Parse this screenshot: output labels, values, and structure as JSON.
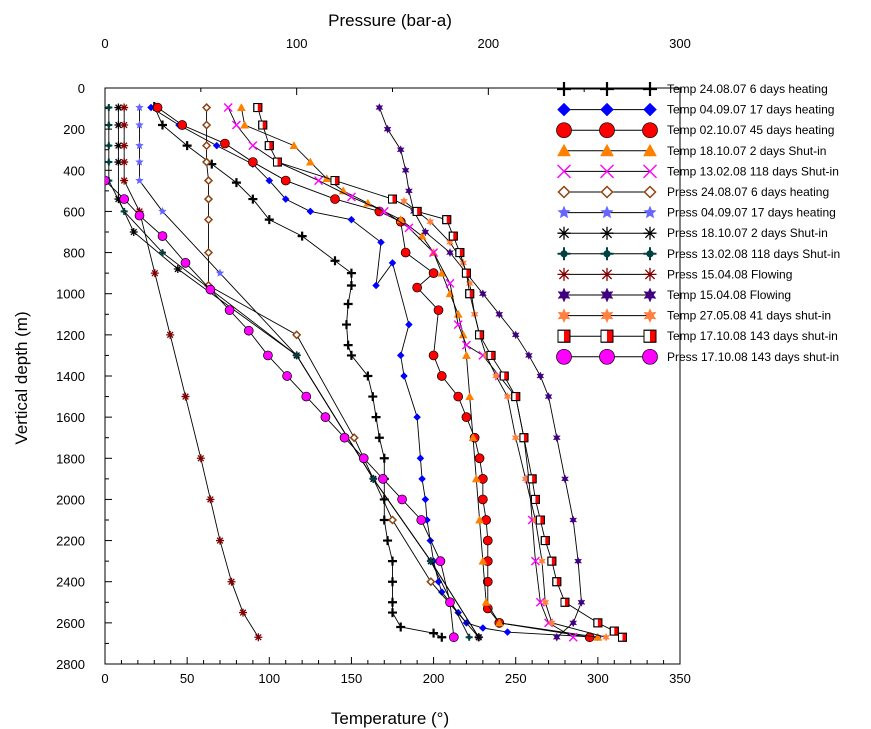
{
  "chart_data": {
    "type": "line",
    "title": "",
    "xlabel": "Temperature (°)",
    "x2label": "Pressure (bar-a)",
    "ylabel": "Vertical depth (m)",
    "xlim": [
      0,
      350
    ],
    "x2lim": [
      0,
      300
    ],
    "ylim": [
      0,
      2800
    ],
    "y_inverted": true,
    "xticks": [
      0,
      50,
      100,
      150,
      200,
      250,
      300,
      350
    ],
    "x2ticks": [
      0,
      100,
      200,
      300
    ],
    "yticks": [
      0,
      200,
      400,
      600,
      800,
      1000,
      1200,
      1400,
      1600,
      1800,
      2000,
      2200,
      2400,
      2600,
      2800
    ],
    "legend_position": "top-right",
    "grid": false,
    "series": [
      {
        "name": "Temp 24.08.07 6 days heating",
        "axis": "temperature",
        "marker": "plus-bold",
        "color": "#000000",
        "x": [
          30,
          35,
          50,
          65,
          80,
          90,
          100,
          120,
          140,
          150,
          150,
          148,
          147,
          148,
          150,
          160,
          163,
          165,
          167,
          170,
          170,
          170,
          170,
          172,
          175,
          175,
          175,
          175,
          180,
          200,
          205
        ],
        "y": [
          90,
          180,
          280,
          370,
          460,
          540,
          640,
          720,
          840,
          900,
          960,
          1050,
          1150,
          1250,
          1300,
          1400,
          1500,
          1600,
          1700,
          1800,
          1900,
          2000,
          2100,
          2200,
          2300,
          2400,
          2500,
          2550,
          2620,
          2650,
          2670
        ]
      },
      {
        "name": "Temp 04.09.07 17 days heating",
        "axis": "temperature",
        "marker": "diamond",
        "color": "#0000ff",
        "x": [
          28,
          45,
          68,
          90,
          100,
          110,
          125,
          150,
          168,
          165,
          175,
          185,
          180,
          182,
          190,
          192,
          193,
          195,
          196,
          198,
          200,
          203,
          205,
          210,
          215,
          220,
          230,
          245,
          300
        ],
        "y": [
          95,
          180,
          280,
          370,
          450,
          540,
          600,
          640,
          750,
          960,
          850,
          1150,
          1300,
          1400,
          1600,
          1800,
          1900,
          2000,
          2100,
          2200,
          2300,
          2400,
          2450,
          2500,
          2550,
          2600,
          2625,
          2645,
          2670
        ]
      },
      {
        "name": "Temp 02.10.07 45 days heating",
        "axis": "temperature",
        "marker": "circle",
        "color": "#ff0000",
        "x": [
          32,
          47,
          73,
          90,
          110,
          140,
          167,
          180,
          183,
          200,
          190,
          203,
          200,
          205,
          215,
          220,
          225,
          228,
          230,
          230,
          232,
          233,
          233,
          233,
          233,
          240,
          295
        ],
        "y": [
          95,
          180,
          270,
          360,
          450,
          540,
          600,
          650,
          800,
          900,
          970,
          1080,
          1300,
          1400,
          1500,
          1600,
          1700,
          1800,
          1900,
          2000,
          2100,
          2200,
          2300,
          2400,
          2530,
          2600,
          2670
        ]
      },
      {
        "name": "Temp 18.10.07 2 days Shut-in",
        "axis": "temperature",
        "marker": "triangle",
        "color": "#ff8000",
        "x": [
          83,
          85,
          115,
          125,
          135,
          145,
          160,
          180,
          193,
          200,
          205,
          210,
          215,
          218,
          220,
          222,
          224,
          226,
          228,
          230,
          232,
          240,
          300
        ],
        "y": [
          95,
          180,
          280,
          360,
          440,
          500,
          560,
          640,
          720,
          800,
          900,
          1000,
          1100,
          1200,
          1300,
          1500,
          1700,
          1900,
          2100,
          2300,
          2500,
          2600,
          2670
        ]
      },
      {
        "name": "Temp 13.02.08 118 days Shut-in",
        "axis": "temperature",
        "marker": "x",
        "color": "#ff00ff",
        "x": [
          75,
          80,
          90,
          105,
          130,
          150,
          170,
          185,
          200,
          210,
          215,
          220,
          230,
          240,
          250,
          255,
          258,
          260,
          262,
          265,
          270,
          285
        ],
        "y": [
          95,
          180,
          280,
          360,
          450,
          530,
          600,
          680,
          800,
          950,
          1150,
          1250,
          1300,
          1400,
          1500,
          1700,
          1900,
          2100,
          2300,
          2500,
          2600,
          2670
        ]
      },
      {
        "name": "Press 24.08.07 6 days heating",
        "axis": "pressure",
        "marker": "diamond-open",
        "color": "#8b4513",
        "x": [
          53,
          53,
          53,
          53,
          54,
          54,
          54,
          54,
          54,
          100,
          130,
          150,
          170,
          195
        ],
        "y": [
          95,
          180,
          280,
          360,
          450,
          540,
          640,
          800,
          960,
          1200,
          1700,
          2100,
          2400,
          2670
        ]
      },
      {
        "name": "Press 04.09.07 17 days heating",
        "axis": "pressure",
        "marker": "star",
        "color": "#6666ff",
        "x": [
          18,
          18,
          18,
          18,
          18,
          30,
          60,
          100,
          140,
          170,
          195
        ],
        "y": [
          95,
          180,
          280,
          360,
          450,
          600,
          900,
          1300,
          1900,
          2300,
          2670
        ]
      },
      {
        "name": "Press 18.10.07 2 days Shut-in",
        "axis": "pressure",
        "marker": "asterisk",
        "color": "#000000",
        "x": [
          7,
          7,
          7,
          7,
          7,
          15,
          38,
          100,
          140,
          170,
          195
        ],
        "y": [
          95,
          180,
          280,
          360,
          540,
          700,
          880,
          1300,
          1900,
          2300,
          2670
        ]
      },
      {
        "name": "Press 13.02.08 118 days Shut-in",
        "axis": "pressure",
        "marker": "plus-circle",
        "color": "#004040",
        "x": [
          2,
          2,
          2,
          2,
          2,
          10,
          30,
          100,
          140,
          170,
          190
        ],
        "y": [
          95,
          180,
          280,
          360,
          450,
          600,
          800,
          1300,
          1900,
          2300,
          2670
        ]
      },
      {
        "name": "Press 15.04.08 Flowing",
        "axis": "pressure",
        "marker": "asterisk",
        "color": "#800000",
        "x": [
          10,
          10,
          10,
          10,
          10,
          18,
          26,
          34,
          42,
          50,
          55,
          60,
          66,
          72,
          80
        ],
        "y": [
          95,
          180,
          280,
          360,
          450,
          600,
          900,
          1200,
          1500,
          1800,
          2000,
          2200,
          2400,
          2550,
          2670
        ]
      },
      {
        "name": "Temp 15.04.08 Flowing",
        "axis": "temperature",
        "marker": "star6",
        "color": "#400080",
        "x": [
          167,
          172,
          180,
          183,
          185,
          188,
          195,
          210,
          220,
          230,
          240,
          250,
          258,
          265,
          270,
          275,
          280,
          285,
          288,
          290,
          285,
          275
        ],
        "y": [
          95,
          200,
          300,
          400,
          500,
          600,
          700,
          800,
          900,
          1000,
          1100,
          1200,
          1300,
          1400,
          1500,
          1700,
          1900,
          2100,
          2300,
          2500,
          2600,
          2670
        ]
      },
      {
        "name": "Temp 27.05.08 41 days shut-in",
        "axis": "temperature",
        "marker": "star6",
        "color": "#ff8040",
        "x": [
          182,
          190,
          198,
          210,
          218,
          222,
          225,
          228,
          232,
          238,
          245,
          250,
          256,
          262,
          266,
          268,
          272,
          305
        ],
        "y": [
          550,
          600,
          650,
          750,
          850,
          950,
          1100,
          1200,
          1300,
          1400,
          1500,
          1700,
          1900,
          2100,
          2300,
          2500,
          2600,
          2670
        ]
      },
      {
        "name": "Temp 17.10.08 143 days shut-in",
        "axis": "temperature",
        "marker": "square-half",
        "color": "#000000",
        "x": [
          93,
          96,
          100,
          105,
          140,
          175,
          190,
          208,
          212,
          216,
          220,
          222,
          228,
          235,
          243,
          250,
          255,
          260,
          262,
          265,
          268,
          272,
          275,
          280,
          300,
          310,
          315
        ],
        "y": [
          95,
          180,
          280,
          360,
          450,
          540,
          600,
          640,
          720,
          800,
          900,
          1000,
          1200,
          1300,
          1400,
          1500,
          1700,
          1900,
          2000,
          2100,
          2200,
          2300,
          2400,
          2500,
          2600,
          2640,
          2670
        ]
      },
      {
        "name": "Press 17.10.08 143 days shut-in",
        "axis": "pressure",
        "marker": "circle",
        "color": "#ff00ff",
        "x": [
          0,
          10,
          18,
          30,
          42,
          55,
          65,
          75,
          85,
          95,
          105,
          115,
          125,
          135,
          145,
          155,
          165,
          175,
          180,
          182
        ],
        "y": [
          450,
          540,
          620,
          720,
          850,
          980,
          1080,
          1180,
          1300,
          1400,
          1500,
          1600,
          1700,
          1800,
          1900,
          2000,
          2100,
          2300,
          2500,
          2670
        ]
      }
    ]
  }
}
